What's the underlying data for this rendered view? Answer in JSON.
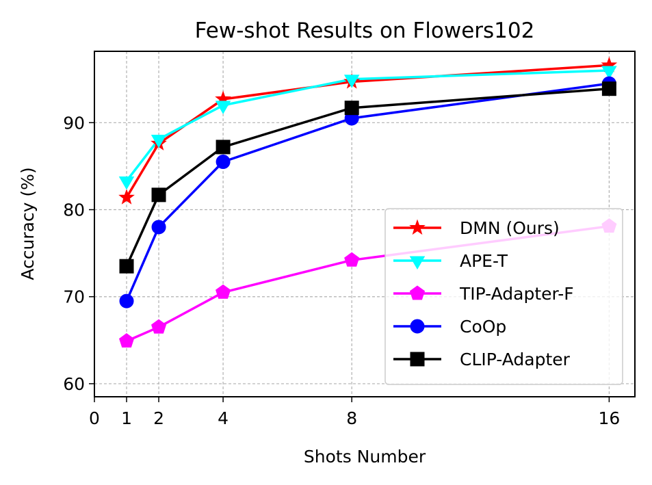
{
  "chart_data": {
    "type": "line",
    "title": "Few-shot Results on Flowers102",
    "xlabel": "Shots Number",
    "ylabel": "Accuracy (%)",
    "x": [
      1,
      2,
      4,
      8,
      16
    ],
    "xticks": [
      0,
      1,
      2,
      4,
      8,
      16
    ],
    "yticks": [
      60,
      70,
      80,
      90
    ],
    "xlim": [
      0,
      16.8
    ],
    "ylim": [
      58.5,
      98.2
    ],
    "grid": true,
    "legend_position": "lower-right",
    "series": [
      {
        "name": "DMN (Ours)",
        "color": "#ff0000",
        "marker": "star",
        "values": [
          81.4,
          87.6,
          92.7,
          94.7,
          96.6
        ]
      },
      {
        "name": "APE-T",
        "color": "#00ffff",
        "marker": "triangle-down",
        "values": [
          83.3,
          88.1,
          92.0,
          95.0,
          96.0
        ]
      },
      {
        "name": "TIP-Adapter-F",
        "color": "#ff00ff",
        "marker": "pentagon",
        "values": [
          64.9,
          66.5,
          70.5,
          74.2,
          78.1
        ]
      },
      {
        "name": "CoOp",
        "color": "#0000ff",
        "marker": "circle",
        "values": [
          69.5,
          78.0,
          85.5,
          90.5,
          94.5
        ]
      },
      {
        "name": "CLIP-Adapter",
        "color": "#000000",
        "marker": "square",
        "values": [
          73.5,
          81.7,
          87.2,
          91.7,
          93.9
        ]
      }
    ]
  }
}
